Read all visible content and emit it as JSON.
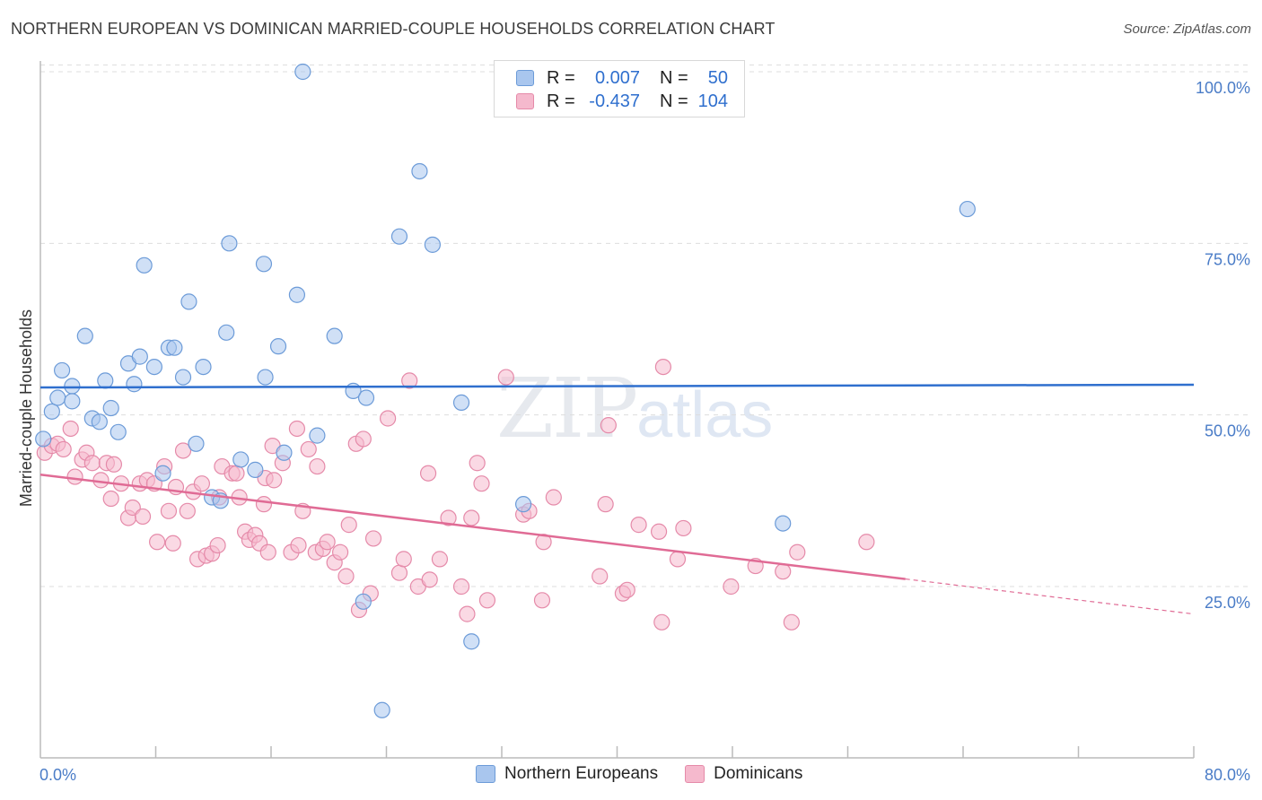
{
  "title": "NORTHERN EUROPEAN VS DOMINICAN MARRIED-COUPLE HOUSEHOLDS CORRELATION CHART",
  "source": "Source: ZipAtlas.com",
  "watermark": {
    "zip": "ZIP",
    "atlas": "atlas"
  },
  "legend": {
    "rows": [
      {
        "r_label": "R =",
        "r_value": "0.007",
        "n_label": "N =",
        "n_value": "50"
      },
      {
        "r_label": "R =",
        "r_value": "-0.437",
        "n_label": "N =",
        "n_value": "104"
      }
    ]
  },
  "bottom_legend": [
    "Northern Europeans",
    "Dominicans"
  ],
  "colors": {
    "blue_fill": "#a9c6ee",
    "blue_stroke": "#6c9bd8",
    "blue_line": "#2f6fce",
    "pink_fill": "#f5b9cd",
    "pink_stroke": "#e58aa9",
    "pink_line": "#e06b95",
    "grid": "#dddddd",
    "tick_text": "#4a7cc7"
  },
  "chart_data": {
    "type": "scatter",
    "title": "NORTHERN EUROPEAN VS DOMINICAN MARRIED-COUPLE HOUSEHOLDS CORRELATION CHART",
    "xlabel": "",
    "ylabel": "Married-couple Households",
    "xlim": [
      0,
      80
    ],
    "ylim": [
      0,
      102
    ],
    "x_tick_labels": [
      "0.0%",
      "80.0%"
    ],
    "y_ticks": [
      25,
      50,
      75,
      100
    ],
    "y_tick_labels": [
      "25.0%",
      "50.0%",
      "75.0%",
      "100.0%"
    ],
    "grid": true,
    "legend_position": "top-center",
    "series": [
      {
        "name": "Northern Europeans",
        "R": 0.007,
        "N": 50,
        "trend": {
          "x": [
            0,
            80
          ],
          "y": [
            54.0,
            54.4
          ]
        },
        "points": [
          [
            0.2,
            46.5
          ],
          [
            0.8,
            50.5
          ],
          [
            1.2,
            52.5
          ],
          [
            1.5,
            56.5
          ],
          [
            2.2,
            54.2
          ],
          [
            2.2,
            52.0
          ],
          [
            3.1,
            61.5
          ],
          [
            3.6,
            49.5
          ],
          [
            4.1,
            49.0
          ],
          [
            4.5,
            55.0
          ],
          [
            4.9,
            51.0
          ],
          [
            5.4,
            47.5
          ],
          [
            6.1,
            57.5
          ],
          [
            6.5,
            54.5
          ],
          [
            6.9,
            58.5
          ],
          [
            7.2,
            71.8
          ],
          [
            7.9,
            57.0
          ],
          [
            8.5,
            41.5
          ],
          [
            8.9,
            59.8
          ],
          [
            9.3,
            59.8
          ],
          [
            9.9,
            55.5
          ],
          [
            10.3,
            66.5
          ],
          [
            10.8,
            45.8
          ],
          [
            11.3,
            57.0
          ],
          [
            11.9,
            38.0
          ],
          [
            12.5,
            37.5
          ],
          [
            12.9,
            62.0
          ],
          [
            13.1,
            75.0
          ],
          [
            13.9,
            43.5
          ],
          [
            14.9,
            42.0
          ],
          [
            15.5,
            72.0
          ],
          [
            15.6,
            55.5
          ],
          [
            16.5,
            60.0
          ],
          [
            16.9,
            44.5
          ],
          [
            17.8,
            67.5
          ],
          [
            18.2,
            100.0
          ],
          [
            19.2,
            47.0
          ],
          [
            20.4,
            61.5
          ],
          [
            21.7,
            53.5
          ],
          [
            22.4,
            22.8
          ],
          [
            22.6,
            52.5
          ],
          [
            23.7,
            7.0
          ],
          [
            24.9,
            76.0
          ],
          [
            26.3,
            85.5
          ],
          [
            27.2,
            74.8
          ],
          [
            29.2,
            51.8
          ],
          [
            29.9,
            17.0
          ],
          [
            33.5,
            37.0
          ],
          [
            51.5,
            34.2
          ],
          [
            64.3,
            80.0
          ]
        ]
      },
      {
        "name": "Dominicans",
        "R": -0.437,
        "N": 104,
        "trend": {
          "x": [
            0,
            60
          ],
          "y": [
            41.3,
            26.1
          ]
        },
        "trend_extension": {
          "x": [
            60,
            80
          ],
          "y": [
            26.1,
            21.0
          ]
        },
        "points": [
          [
            0.3,
            44.5
          ],
          [
            0.8,
            45.5
          ],
          [
            1.2,
            45.8
          ],
          [
            1.6,
            45.0
          ],
          [
            2.1,
            48.0
          ],
          [
            2.4,
            41.0
          ],
          [
            2.9,
            43.5
          ],
          [
            3.2,
            44.5
          ],
          [
            3.6,
            43.0
          ],
          [
            4.2,
            40.5
          ],
          [
            4.6,
            43.0
          ],
          [
            4.9,
            37.8
          ],
          [
            5.1,
            42.8
          ],
          [
            5.6,
            40.0
          ],
          [
            6.1,
            35.0
          ],
          [
            6.4,
            36.5
          ],
          [
            6.9,
            40.0
          ],
          [
            7.1,
            35.2
          ],
          [
            7.4,
            40.5
          ],
          [
            7.9,
            40.0
          ],
          [
            8.1,
            31.5
          ],
          [
            8.6,
            42.5
          ],
          [
            8.9,
            36.0
          ],
          [
            9.2,
            31.3
          ],
          [
            9.4,
            39.5
          ],
          [
            9.9,
            44.8
          ],
          [
            10.2,
            36.0
          ],
          [
            10.6,
            38.8
          ],
          [
            10.9,
            29.0
          ],
          [
            11.2,
            40.0
          ],
          [
            11.5,
            29.5
          ],
          [
            11.9,
            29.8
          ],
          [
            12.3,
            31.0
          ],
          [
            12.4,
            38.0
          ],
          [
            12.6,
            42.5
          ],
          [
            13.3,
            41.5
          ],
          [
            13.6,
            41.5
          ],
          [
            13.8,
            38.0
          ],
          [
            14.2,
            33.0
          ],
          [
            14.5,
            31.8
          ],
          [
            14.9,
            32.5
          ],
          [
            15.2,
            31.3
          ],
          [
            15.5,
            37.0
          ],
          [
            15.6,
            40.8
          ],
          [
            15.8,
            30.0
          ],
          [
            16.1,
            45.5
          ],
          [
            16.2,
            40.5
          ],
          [
            16.8,
            43.0
          ],
          [
            17.4,
            30.0
          ],
          [
            17.8,
            48.0
          ],
          [
            17.9,
            31.0
          ],
          [
            18.2,
            36.0
          ],
          [
            18.6,
            45.0
          ],
          [
            19.1,
            30.0
          ],
          [
            19.2,
            42.5
          ],
          [
            19.6,
            30.5
          ],
          [
            19.9,
            31.5
          ],
          [
            20.4,
            28.5
          ],
          [
            20.8,
            30.0
          ],
          [
            21.2,
            26.5
          ],
          [
            21.4,
            34.0
          ],
          [
            21.9,
            45.8
          ],
          [
            22.1,
            21.6
          ],
          [
            22.4,
            46.5
          ],
          [
            22.9,
            24.0
          ],
          [
            23.1,
            32.0
          ],
          [
            24.1,
            49.5
          ],
          [
            24.9,
            27.0
          ],
          [
            25.2,
            29.0
          ],
          [
            25.6,
            55.0
          ],
          [
            26.2,
            25.0
          ],
          [
            26.9,
            41.5
          ],
          [
            27.0,
            26.0
          ],
          [
            27.7,
            29.0
          ],
          [
            28.3,
            35.0
          ],
          [
            29.2,
            25.0
          ],
          [
            29.6,
            21.0
          ],
          [
            29.9,
            35.0
          ],
          [
            30.3,
            43.0
          ],
          [
            30.6,
            40.0
          ],
          [
            31.0,
            23.0
          ],
          [
            32.3,
            55.5
          ],
          [
            33.5,
            35.5
          ],
          [
            33.9,
            36.0
          ],
          [
            34.8,
            23.0
          ],
          [
            34.9,
            31.5
          ],
          [
            35.6,
            38.0
          ],
          [
            38.8,
            26.5
          ],
          [
            39.2,
            37.0
          ],
          [
            39.4,
            48.5
          ],
          [
            40.4,
            24.0
          ],
          [
            40.7,
            24.5
          ],
          [
            41.5,
            34.0
          ],
          [
            42.9,
            33.0
          ],
          [
            43.1,
            19.8
          ],
          [
            43.2,
            57.0
          ],
          [
            44.2,
            29.0
          ],
          [
            44.6,
            33.5
          ],
          [
            47.9,
            25.0
          ],
          [
            49.6,
            28.0
          ],
          [
            51.5,
            27.2
          ],
          [
            52.1,
            19.8
          ],
          [
            52.5,
            30.0
          ],
          [
            57.3,
            31.5
          ]
        ]
      }
    ]
  }
}
